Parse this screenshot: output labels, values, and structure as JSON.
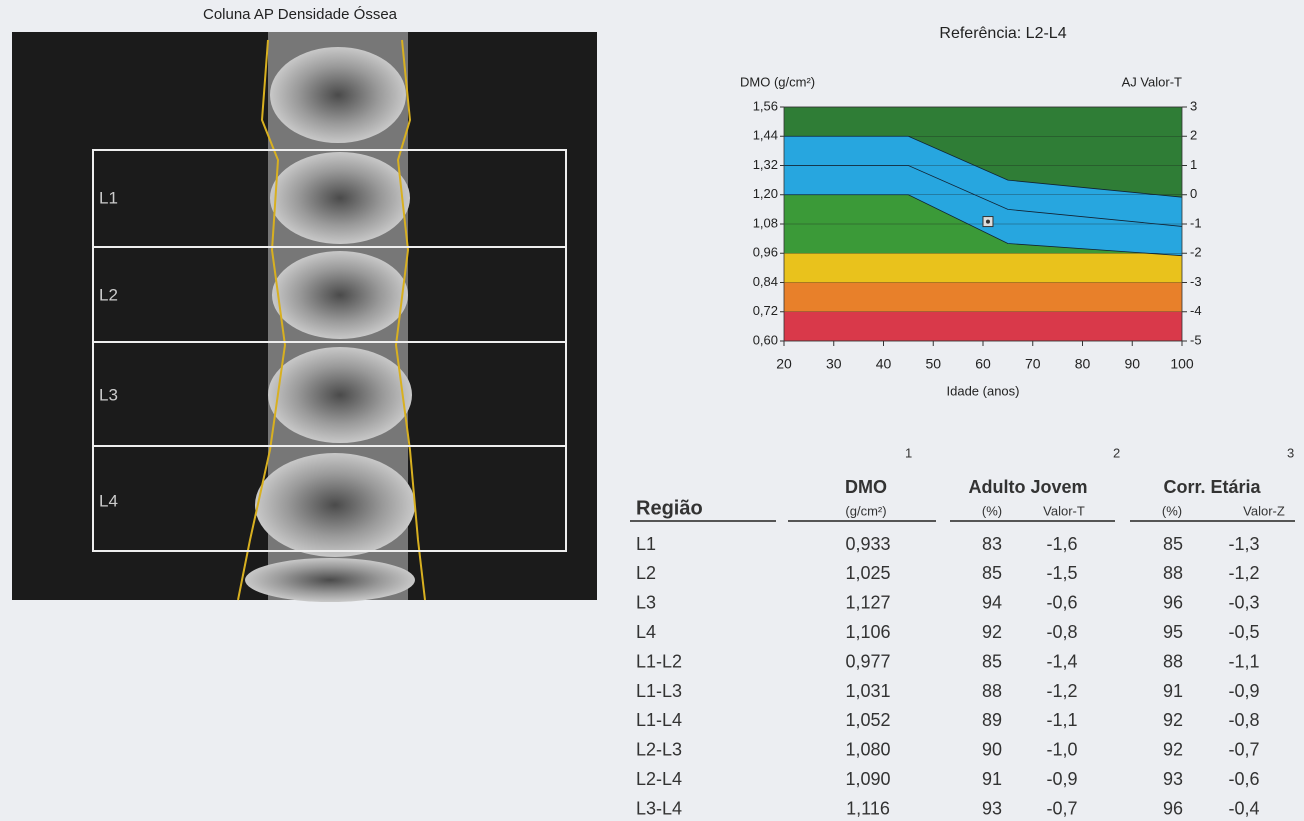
{
  "image_panel": {
    "title": "Coluna AP Densidade Óssea",
    "labels": [
      "L1",
      "L2",
      "L3",
      "L4"
    ]
  },
  "chart_data": {
    "type": "reference",
    "title": "Referência: L2-L4",
    "y_label": "DMO (g/cm²)",
    "y2_label": "AJ Valor-T",
    "x_label": "Idade (anos)",
    "xlim": [
      20,
      100
    ],
    "xticks": [
      20,
      30,
      40,
      50,
      60,
      70,
      80,
      90,
      100
    ],
    "ylim": [
      0.6,
      1.56
    ],
    "yticks": [
      {
        "value": 0.6,
        "label": "0,60"
      },
      {
        "value": 0.72,
        "label": "0,72"
      },
      {
        "value": 0.84,
        "label": "0,84"
      },
      {
        "value": 0.96,
        "label": "0,96"
      },
      {
        "value": 1.08,
        "label": "1,08"
      },
      {
        "value": 1.2,
        "label": "1,20"
      },
      {
        "value": 1.32,
        "label": "1,32"
      },
      {
        "value": 1.44,
        "label": "1,44"
      },
      {
        "value": 1.56,
        "label": "1,56"
      }
    ],
    "y2lim": [
      -5,
      3
    ],
    "y2ticks": [
      -5,
      -4,
      -3,
      -2,
      -1,
      0,
      1,
      2,
      3
    ],
    "bands": [
      {
        "range": [
          -2,
          3
        ],
        "color": "#2f7d36"
      },
      {
        "range": [
          -3,
          -2
        ],
        "color": "#e9c21c"
      },
      {
        "range": [
          -4,
          -3
        ],
        "color": "#e8802a"
      },
      {
        "range": [
          -5,
          -4
        ],
        "color": "#d9394a"
      }
    ],
    "x": [
      20,
      45,
      65,
      100
    ],
    "series": [
      {
        "color": "#27a6df",
        "values": [
          1.44,
          1.44,
          1.26,
          1.19
        ]
      },
      {
        "color": "#27a6df",
        "values": [
          1.32,
          1.32,
          1.14,
          1.07
        ]
      },
      {
        "color": "#27a6df",
        "values": [
          1.2,
          1.2,
          1.0,
          0.95
        ]
      }
    ],
    "below_color": "#3b9a38",
    "marker": {
      "x": 61,
      "y": 1.09
    },
    "grid": true
  },
  "table": {
    "header": {
      "region": "Região",
      "dmo": "DMO",
      "dmo_note": "1",
      "dmo_unit": "(g/cm²)",
      "young": "Adulto Jovem",
      "young_note": "2",
      "young_pct": "(%)",
      "young_t": "Valor-T",
      "age": "Corr. Etária",
      "age_note": "3",
      "age_pct": "(%)",
      "age_z": "Valor-Z"
    },
    "rows": [
      [
        "L1",
        "0,933",
        "83",
        "-1,6",
        "85",
        "-1,3"
      ],
      [
        "L2",
        "1,025",
        "85",
        "-1,5",
        "88",
        "-1,2"
      ],
      [
        "L3",
        "1,127",
        "94",
        "-0,6",
        "96",
        "-0,3"
      ],
      [
        "L4",
        "1,106",
        "92",
        "-0,8",
        "95",
        "-0,5"
      ],
      [
        "L1-L2",
        "0,977",
        "85",
        "-1,4",
        "88",
        "-1,1"
      ],
      [
        "L1-L3",
        "1,031",
        "88",
        "-1,2",
        "91",
        "-0,9"
      ],
      [
        "L1-L4",
        "1,052",
        "89",
        "-1,1",
        "92",
        "-0,8"
      ],
      [
        "L2-L3",
        "1,080",
        "90",
        "-1,0",
        "92",
        "-0,7"
      ],
      [
        "L2-L4",
        "1,090",
        "91",
        "-0,9",
        "93",
        "-0,6"
      ],
      [
        "L3-L4",
        "1,116",
        "93",
        "-0,7",
        "96",
        "-0,4"
      ]
    ]
  }
}
